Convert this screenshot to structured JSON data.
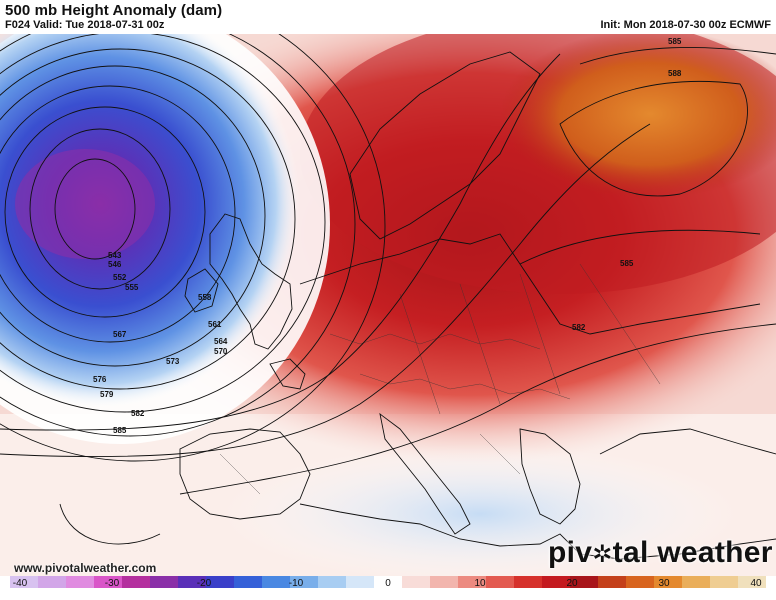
{
  "header": {
    "title": "500 mb Height Anomaly (dam)",
    "valid": "F024 Valid: Tue 2018-07-31 00z",
    "init": "Init: Mon 2018-07-30 00z ECMWF"
  },
  "contour_labels": [
    "543",
    "546",
    "552",
    "555",
    "558",
    "561",
    "564",
    "567",
    "570",
    "573",
    "576",
    "579",
    "582",
    "585",
    "582",
    "585",
    "585",
    "588"
  ],
  "colorbar": {
    "ticks": [
      "-40",
      "-30",
      "-20",
      "-10",
      "0",
      "10",
      "20",
      "30",
      "40"
    ],
    "colors": [
      "#d8c2f0",
      "#d2a6e8",
      "#e08be0",
      "#d955c8",
      "#b42f9e",
      "#8a2fa8",
      "#5a2fb8",
      "#3a3fc9",
      "#3560d8",
      "#4a88e2",
      "#79aeea",
      "#a8cdf2",
      "#d5e6f8",
      "#ffffff",
      "#f8dcd8",
      "#f2b5ad",
      "#ec8a80",
      "#e35a50",
      "#d6312b",
      "#c41a1f",
      "#a8151a",
      "#c4401a",
      "#d8641e",
      "#e4892e",
      "#eaae5a",
      "#efcd92",
      "#f0e0bc"
    ]
  },
  "watermark": "www.pivotalweather.com",
  "brand": {
    "left": "piv",
    "right": "tal weather",
    "icon": "gear-icon"
  }
}
